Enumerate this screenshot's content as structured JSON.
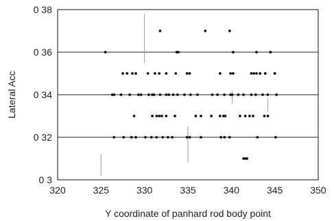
{
  "chart_data": {
    "type": "scatter",
    "title": "",
    "xlabel": "Y coordinate of panhard rod body point",
    "ylabel": "Lateral Acc",
    "xlim": [
      320,
      350
    ],
    "ylim": [
      0.3,
      0.38
    ],
    "x_ticks": [
      320,
      325,
      330,
      335,
      340,
      345,
      350
    ],
    "x_tick_labels": [
      "320",
      "325",
      "330",
      "335",
      "340",
      "345",
      "350"
    ],
    "y_ticks": [
      0.3,
      0.32,
      0.34,
      0.36,
      0.38
    ],
    "y_tick_labels": [
      "0 3",
      "0 32",
      "0 34",
      "0 36",
      "0 38"
    ],
    "grid": "horizontal",
    "marker_color": "#111111",
    "points": [
      [
        331.8,
        0.37
      ],
      [
        337.0,
        0.37
      ],
      [
        339.8,
        0.37
      ],
      [
        325.5,
        0.36
      ],
      [
        333.7,
        0.36
      ],
      [
        333.9,
        0.36
      ],
      [
        340.2,
        0.36
      ],
      [
        342.9,
        0.36
      ],
      [
        344.5,
        0.36
      ],
      [
        327.5,
        0.35
      ],
      [
        328.0,
        0.35
      ],
      [
        328.6,
        0.35
      ],
      [
        329.0,
        0.35
      ],
      [
        330.4,
        0.35
      ],
      [
        331.2,
        0.35
      ],
      [
        331.7,
        0.35
      ],
      [
        332.5,
        0.35
      ],
      [
        333.6,
        0.35
      ],
      [
        334.9,
        0.35
      ],
      [
        335.2,
        0.35
      ],
      [
        338.7,
        0.35
      ],
      [
        339.9,
        0.35
      ],
      [
        340.2,
        0.35
      ],
      [
        342.3,
        0.35
      ],
      [
        342.6,
        0.35
      ],
      [
        342.9,
        0.35
      ],
      [
        343.3,
        0.35
      ],
      [
        343.9,
        0.35
      ],
      [
        345.0,
        0.35
      ],
      [
        326.3,
        0.34
      ],
      [
        326.5,
        0.34
      ],
      [
        327.3,
        0.34
      ],
      [
        328.3,
        0.34
      ],
      [
        329.3,
        0.34
      ],
      [
        329.6,
        0.34
      ],
      [
        330.5,
        0.34
      ],
      [
        330.9,
        0.34
      ],
      [
        331.1,
        0.34
      ],
      [
        331.8,
        0.34
      ],
      [
        332.5,
        0.34
      ],
      [
        332.8,
        0.34
      ],
      [
        333.3,
        0.34
      ],
      [
        333.8,
        0.34
      ],
      [
        334.6,
        0.34
      ],
      [
        335.3,
        0.34
      ],
      [
        336.1,
        0.34
      ],
      [
        337.8,
        0.34
      ],
      [
        338.4,
        0.34
      ],
      [
        339.2,
        0.34
      ],
      [
        339.9,
        0.34
      ],
      [
        340.1,
        0.34
      ],
      [
        340.8,
        0.34
      ],
      [
        341.4,
        0.34
      ],
      [
        342.3,
        0.34
      ],
      [
        342.8,
        0.34
      ],
      [
        343.6,
        0.34
      ],
      [
        344.2,
        0.34
      ],
      [
        345.2,
        0.34
      ],
      [
        328.8,
        0.33
      ],
      [
        330.9,
        0.33
      ],
      [
        331.4,
        0.33
      ],
      [
        331.7,
        0.33
      ],
      [
        332.0,
        0.33
      ],
      [
        332.5,
        0.33
      ],
      [
        333.5,
        0.33
      ],
      [
        335.9,
        0.33
      ],
      [
        336.5,
        0.33
      ],
      [
        337.7,
        0.33
      ],
      [
        338.7,
        0.33
      ],
      [
        339.1,
        0.33
      ],
      [
        339.3,
        0.33
      ],
      [
        341.0,
        0.33
      ],
      [
        341.6,
        0.33
      ],
      [
        342.1,
        0.33
      ],
      [
        342.5,
        0.33
      ],
      [
        343.8,
        0.33
      ],
      [
        344.2,
        0.33
      ],
      [
        326.5,
        0.32
      ],
      [
        327.6,
        0.32
      ],
      [
        328.5,
        0.32
      ],
      [
        329.0,
        0.32
      ],
      [
        330.1,
        0.32
      ],
      [
        330.8,
        0.32
      ],
      [
        331.4,
        0.32
      ],
      [
        332.1,
        0.32
      ],
      [
        332.7,
        0.32
      ],
      [
        333.2,
        0.32
      ],
      [
        334.9,
        0.32
      ],
      [
        335.2,
        0.32
      ],
      [
        336.5,
        0.32
      ],
      [
        338.8,
        0.32
      ],
      [
        339.2,
        0.32
      ],
      [
        339.8,
        0.32
      ],
      [
        343.0,
        0.32
      ],
      [
        345.1,
        0.32
      ],
      [
        341.4,
        0.31
      ],
      [
        341.6,
        0.31
      ],
      [
        341.8,
        0.31
      ]
    ],
    "faint_vertical_marks": [
      [
        325.0,
        0.302,
        0.312
      ],
      [
        330.0,
        0.355,
        0.378
      ],
      [
        335.0,
        0.308,
        0.325
      ],
      [
        340.1,
        0.336,
        0.342
      ],
      [
        344.2,
        0.332,
        0.338
      ]
    ]
  }
}
